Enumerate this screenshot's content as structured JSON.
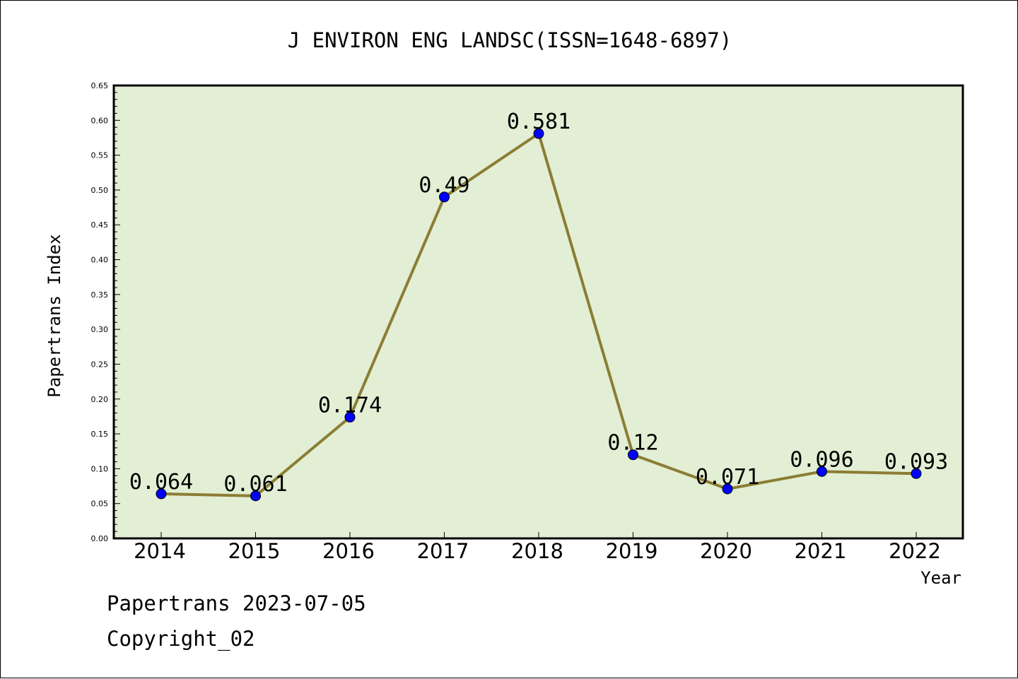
{
  "chart_data": {
    "type": "line",
    "title": "J ENVIRON ENG LANDSC(ISSN=1648-6897)",
    "xlabel": "Year",
    "ylabel": "Papertrans Index",
    "categories": [
      "2014",
      "2015",
      "2016",
      "2017",
      "2018",
      "2019",
      "2020",
      "2021",
      "2022"
    ],
    "values": [
      0.064,
      0.061,
      0.174,
      0.49,
      0.581,
      0.12,
      0.071,
      0.096,
      0.093
    ],
    "data_labels": [
      "0.064",
      "0.061",
      "0.174",
      "0.49",
      "0.581",
      "0.12",
      "0.071",
      "0.096",
      "0.093"
    ],
    "ylim": [
      0,
      0.65
    ],
    "yticks": [
      "0.00",
      "0.05",
      "0.10",
      "0.15",
      "0.20",
      "0.25",
      "0.30",
      "0.35",
      "0.40",
      "0.45",
      "0.50",
      "0.55",
      "0.60",
      "0.65"
    ],
    "grid": false,
    "legend": "none",
    "colors": {
      "plot_background": "#e2efd4",
      "line": "#8b7d34",
      "marker": "#0000ff"
    }
  },
  "footer": {
    "line1": "Papertrans 2023-07-05",
    "line2": "Copyright_02"
  }
}
